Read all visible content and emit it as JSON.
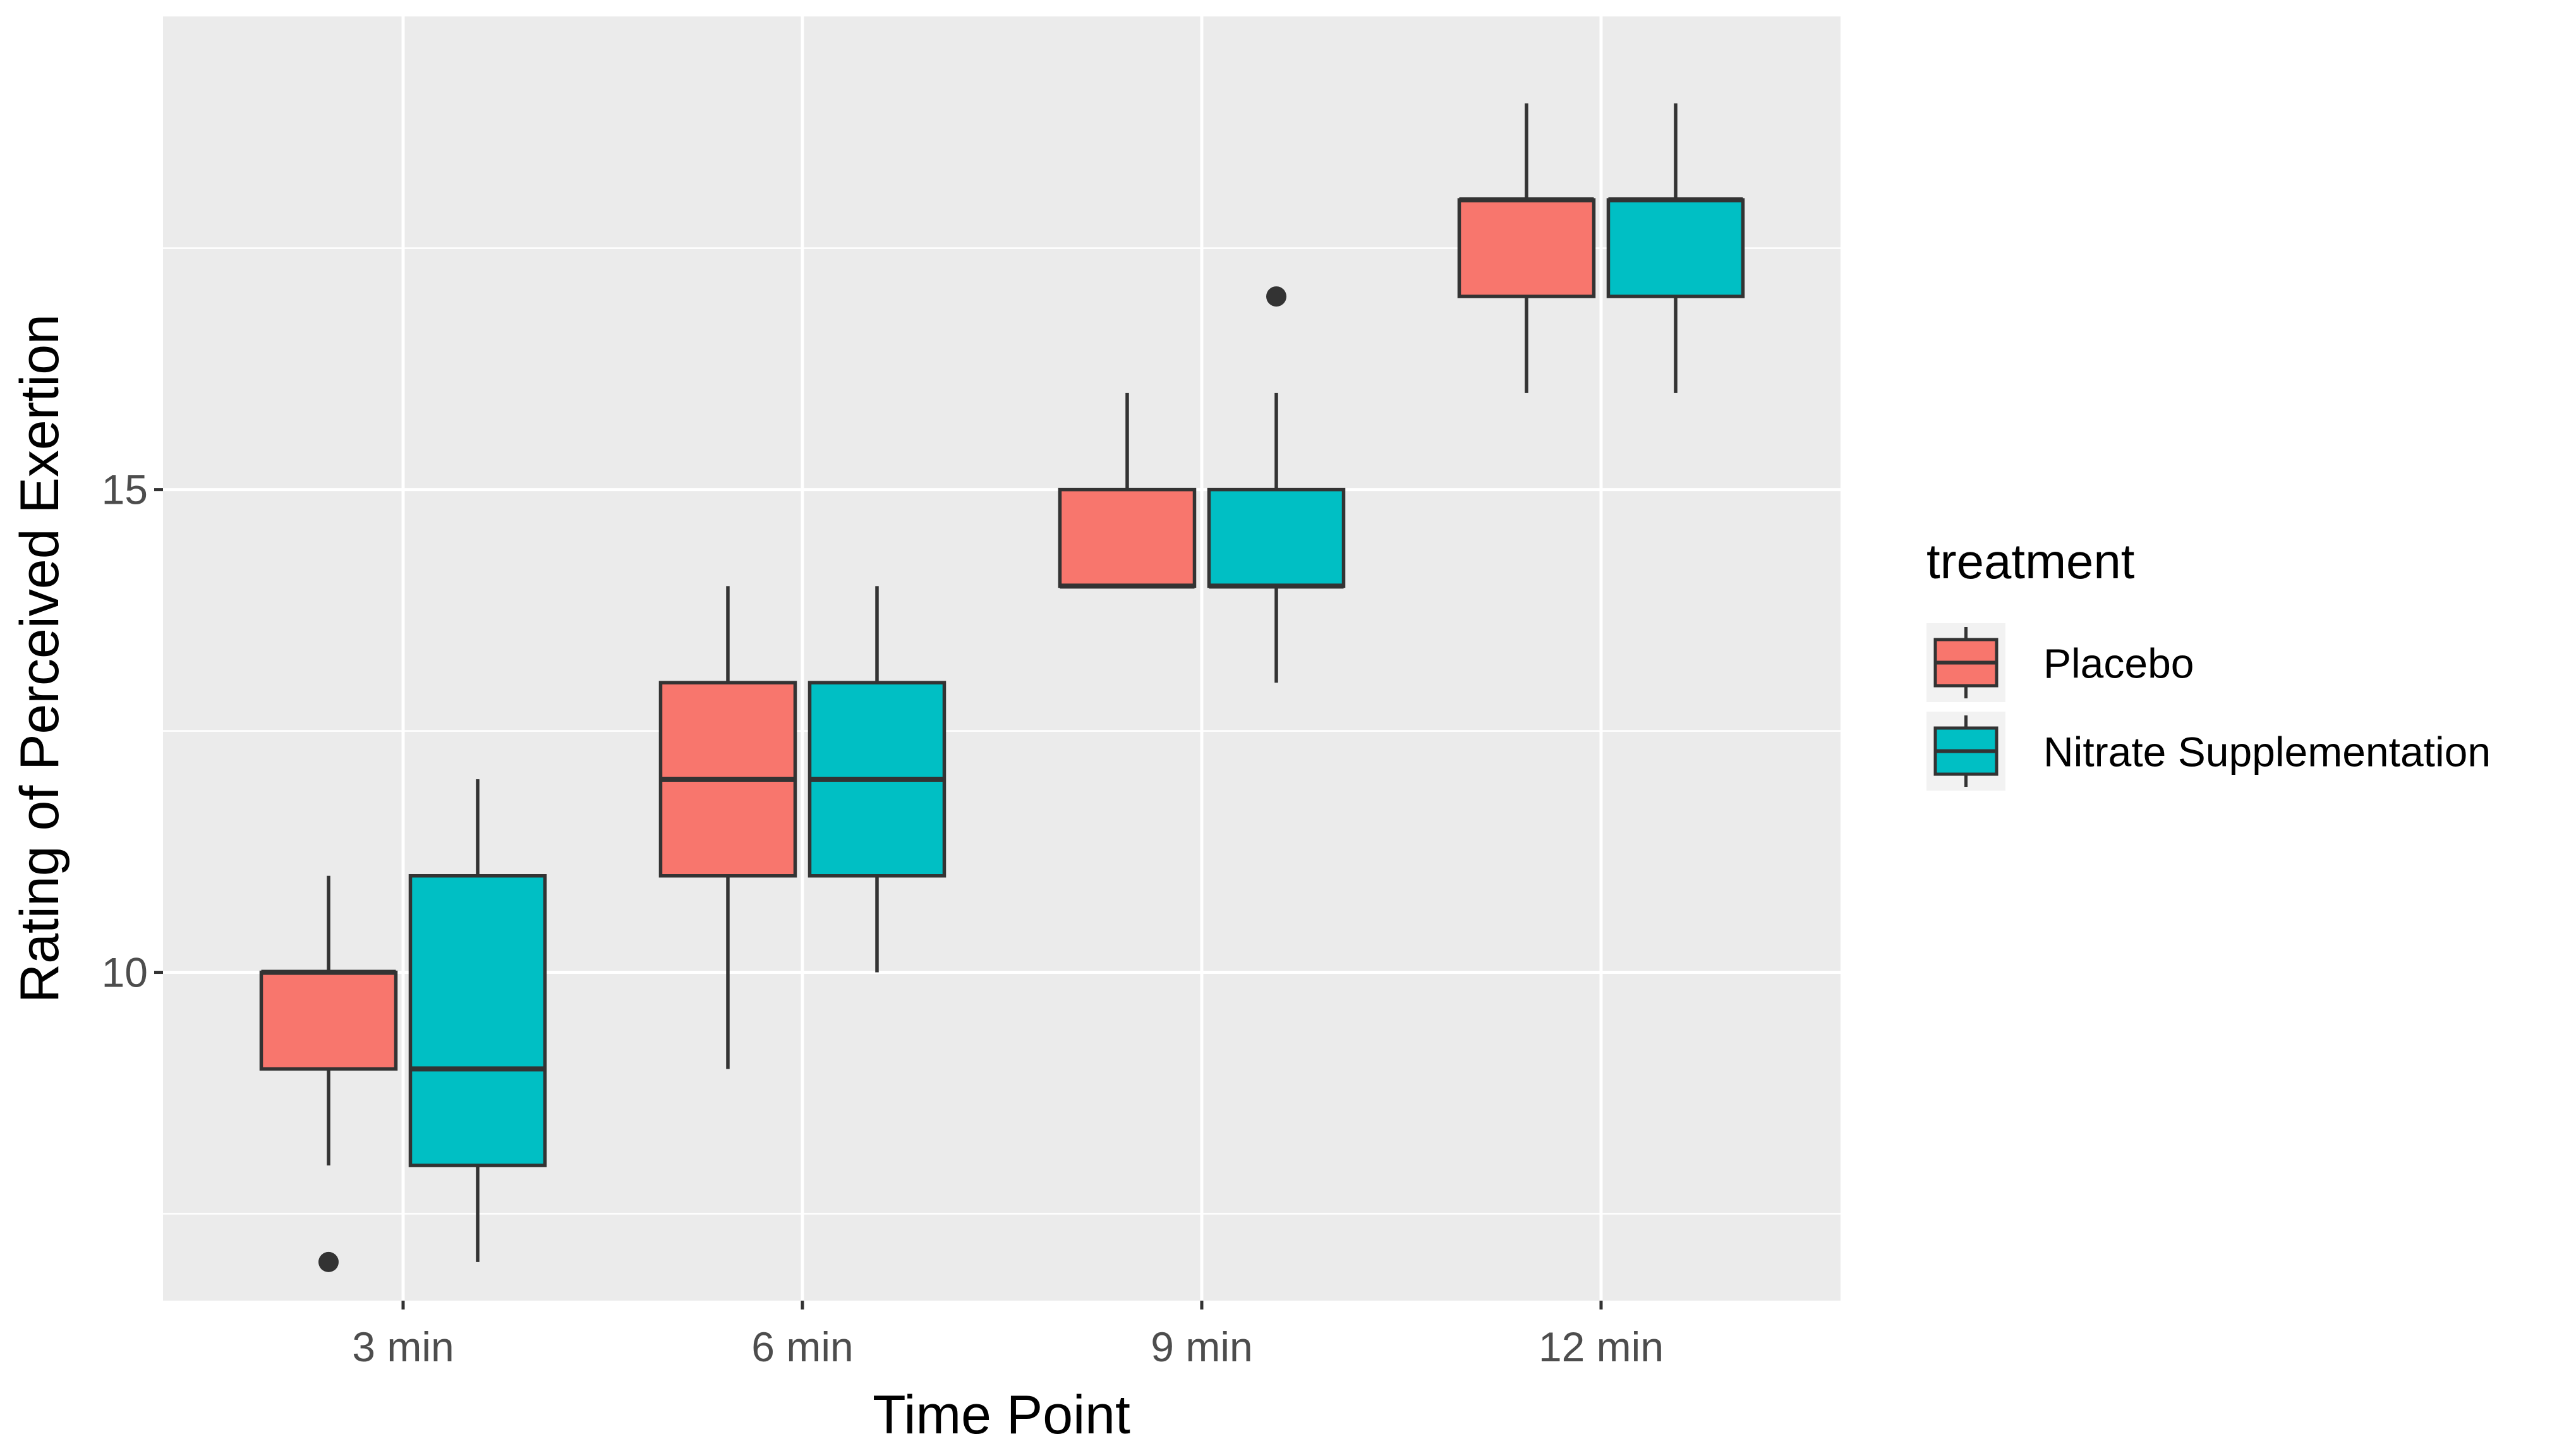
{
  "chart_data": {
    "type": "boxplot",
    "xlabel": "Time Point",
    "ylabel": "Rating of Perceived Exertion",
    "categories": [
      "3 min",
      "6 min",
      "9 min",
      "12 min"
    ],
    "ylim": [
      6.6,
      19.9
    ],
    "yticks": [
      10,
      15
    ],
    "ytick_labels": [
      "10",
      "15"
    ],
    "legend": {
      "title": "treatment",
      "position": "right"
    },
    "grid": true,
    "series": [
      {
        "name": "Placebo",
        "color": "#f8766d",
        "boxes": [
          {
            "category": "3 min",
            "whisker_low": 8,
            "q1": 9,
            "median": 10,
            "q3": 10,
            "whisker_high": 11,
            "outliers": [
              7
            ]
          },
          {
            "category": "6 min",
            "whisker_low": 9,
            "q1": 11,
            "median": 12,
            "q3": 13,
            "whisker_high": 14,
            "outliers": []
          },
          {
            "category": "9 min",
            "whisker_low": 14,
            "q1": 14,
            "median": 14,
            "q3": 15,
            "whisker_high": 16,
            "outliers": []
          },
          {
            "category": "12 min",
            "whisker_low": 16,
            "q1": 17,
            "median": 18,
            "q3": 18,
            "whisker_high": 19,
            "outliers": []
          }
        ]
      },
      {
        "name": "Nitrate Supplementation",
        "color": "#00bfc4",
        "boxes": [
          {
            "category": "3 min",
            "whisker_low": 7,
            "q1": 8,
            "median": 9,
            "q3": 11,
            "whisker_high": 12,
            "outliers": []
          },
          {
            "category": "6 min",
            "whisker_low": 10,
            "q1": 11,
            "median": 12,
            "q3": 13,
            "whisker_high": 14,
            "outliers": []
          },
          {
            "category": "9 min",
            "whisker_low": 13,
            "q1": 14,
            "median": 14,
            "q3": 15,
            "whisker_high": 16,
            "outliers": [
              17
            ]
          },
          {
            "category": "12 min",
            "whisker_low": 16,
            "q1": 17,
            "median": 18,
            "q3": 18,
            "whisker_high": 19,
            "outliers": []
          }
        ]
      }
    ],
    "colors": {
      "panel_background": "#ebebeb",
      "grid_major": "#ffffff",
      "box_outline": "#333333",
      "tick_label": "#4d4d4d",
      "axis_title": "#000000"
    }
  }
}
